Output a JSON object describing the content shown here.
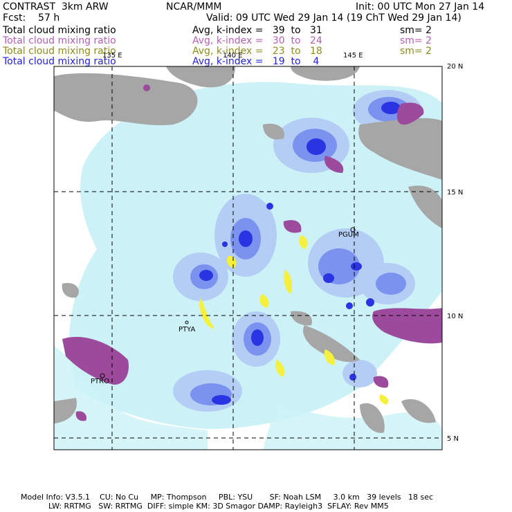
{
  "header": {
    "title_left": "CONTRAST  3km ARW",
    "title_mid": "NCAR/MMM",
    "init": "Init: 00 UTC Mon 27 Jan 14",
    "fcst_label": "Fcst:    57 h",
    "valid": "Valid: 09 UTC Wed 29 Jan 14 (19 ChT Wed 29 Jan 14)"
  },
  "fields": [
    {
      "name": "Total cloud mixing ratio",
      "index": "Avg, k-index =   39  to   31",
      "sm": "sm= 2",
      "color": "#000000"
    },
    {
      "name": "Total cloud mixing ratio",
      "index": "Avg, k-index =   30  to   24",
      "sm": "sm= 2",
      "color": "#b45fb4"
    },
    {
      "name": "Total cloud mixing ratio",
      "index": "Avg, k-index =   23  to   18",
      "sm": "sm= 2",
      "color": "#8c8c1e"
    },
    {
      "name": "Total cloud mixing ratio",
      "index": "Avg, k-index =   19  to    4",
      "sm": "",
      "color": "#2222dd"
    }
  ],
  "map": {
    "lon_labels": [
      "135 E",
      "140 E",
      "145 E"
    ],
    "lat_labels": [
      "20 N",
      "15 N",
      "10 N",
      "5 N"
    ],
    "stations": [
      "PGUM",
      "PTYA",
      "PTRO"
    ]
  },
  "footer": {
    "line1": "Model Info: V3.5.1    CU: No Cu     MP: Thompson     PBL: YSU       SF: Noah LSM     3.0 km   39 levels   18 sec",
    "line2": "LW: RRTMG   SW: RRTMG  DIFF: simple KM: 3D Smagor DAMP: Rayleigh3  SFLAY: Rev MM5"
  }
}
